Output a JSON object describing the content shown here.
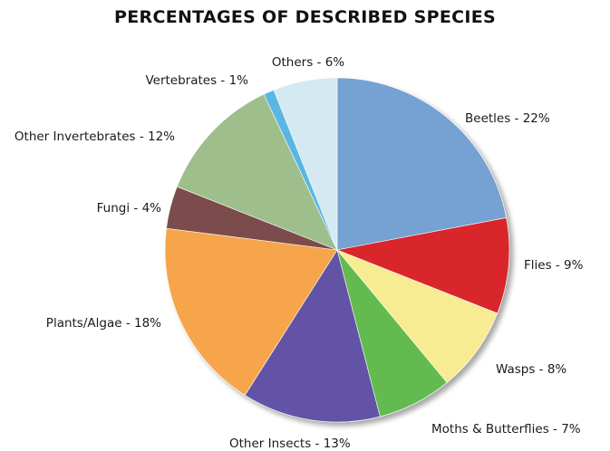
{
  "chart_data": {
    "type": "pie",
    "title": "PERCENTAGES OF DESCRIBED SPECIES",
    "start_angle_deg": 0,
    "direction": "clockwise",
    "slices": [
      {
        "label": "Beetles - 22%",
        "value": 22,
        "color": "#76a1d3"
      },
      {
        "label": "Flies - 9%",
        "value": 9,
        "color": "#d9262b"
      },
      {
        "label": "Wasps - 8%",
        "value": 8,
        "color": "#f8ec92"
      },
      {
        "label": "Moths & Butterflies - 7%",
        "value": 7,
        "color": "#63bb4f"
      },
      {
        "label": "Other Insects - 13%",
        "value": 13,
        "color": "#6253a6"
      },
      {
        "label": "Plants/Algae - 18%",
        "value": 18,
        "color": "#f7a54b"
      },
      {
        "label": "Fungi - 4%",
        "value": 4,
        "color": "#7c4b4b"
      },
      {
        "label": "Other Invertebrates - 12%",
        "value": 12,
        "color": "#9ebf8c"
      },
      {
        "label": "Vertebrates - 1%",
        "value": 1,
        "color": "#5ab7e3"
      },
      {
        "label": "Others - 6%",
        "value": 6,
        "color": "#d4e9f1"
      }
    ]
  }
}
